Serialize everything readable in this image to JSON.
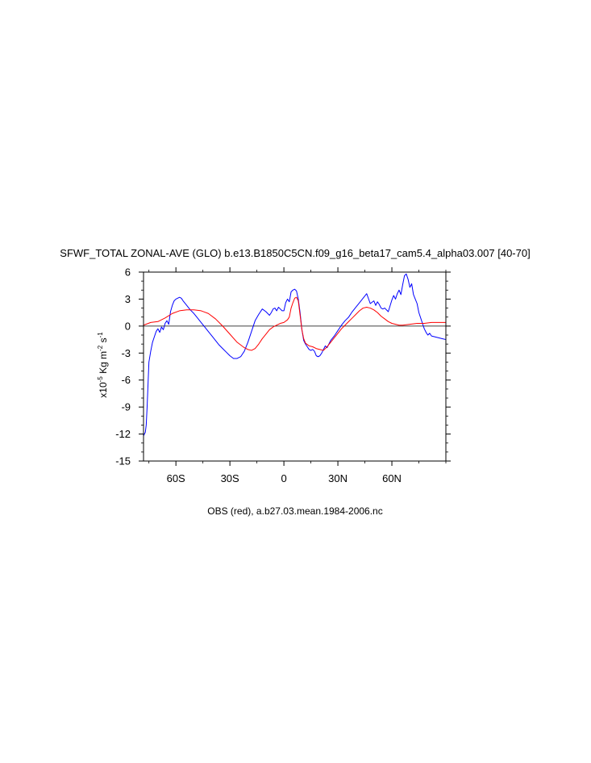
{
  "chart_data": {
    "type": "line",
    "title": "SFWF_TOTAL ZONAL-AVE (GLO) b.e13.B1850C5CN.f09_g16_beta17_cam5.4_alpha03.007 [40-70]",
    "footer": "OBS (red), a.b27.03.mean.1984-2006.nc",
    "ylabel": {
      "prefix": "x10",
      "exp1": "-5",
      "mid": " Kg m",
      "exp2": "-2",
      "mid2": " s",
      "exp3": "-1"
    },
    "xlim": [
      -78,
      90
    ],
    "ylim": [
      -15,
      6
    ],
    "x_ticks": [
      {
        "value": -60,
        "label": "60S"
      },
      {
        "value": -30,
        "label": "30S"
      },
      {
        "value": 0,
        "label": "0"
      },
      {
        "value": 30,
        "label": "30N"
      },
      {
        "value": 60,
        "label": "60N"
      }
    ],
    "y_ticks": [
      {
        "value": 6,
        "label": "6"
      },
      {
        "value": 3,
        "label": "3"
      },
      {
        "value": 0,
        "label": "0"
      },
      {
        "value": -3,
        "label": "-3"
      },
      {
        "value": -6,
        "label": "-6"
      },
      {
        "value": -9,
        "label": "-9"
      },
      {
        "value": -12,
        "label": "-12"
      },
      {
        "value": -15,
        "label": "-15"
      }
    ],
    "reference_line_y": 0,
    "series": [
      {
        "color": "#0000ff",
        "x": [
          -78,
          -77,
          -76.5,
          -76,
          -75.5,
          -75,
          -74,
          -73,
          -72,
          -71,
          -70,
          -69,
          -68,
          -67,
          -66,
          -65,
          -64,
          -63,
          -62,
          -61,
          -60,
          -59,
          -58,
          -57,
          -56,
          -54,
          -52,
          -50,
          -48,
          -46,
          -44,
          -42,
          -40,
          -38,
          -36,
          -34,
          -32,
          -30,
          -28,
          -26,
          -24,
          -22,
          -20,
          -18,
          -16,
          -14,
          -12,
          -10,
          -8,
          -7,
          -6,
          -5,
          -4,
          -3,
          -2,
          -1,
          0,
          1,
          2,
          3,
          4,
          5,
          6,
          7,
          8,
          9,
          10,
          11,
          12,
          13,
          14,
          15,
          16,
          17,
          18,
          19,
          20,
          21,
          22,
          23,
          24,
          25,
          26,
          28,
          30,
          32,
          34,
          36,
          38,
          40,
          42,
          44,
          46,
          48,
          50,
          51,
          52,
          53,
          54,
          55,
          56,
          58,
          60,
          61,
          62,
          63,
          64,
          65,
          66,
          67,
          68,
          69,
          70,
          71,
          72,
          73,
          74,
          75,
          76,
          77,
          78,
          79,
          80,
          81,
          82,
          84,
          86,
          88,
          90
        ],
        "y": [
          -12.2,
          -11.8,
          -11.0,
          -9.0,
          -6.5,
          -4.0,
          -2.8,
          -1.8,
          -1.2,
          -0.6,
          -0.3,
          -0.7,
          -0.1,
          -0.4,
          0.3,
          0.6,
          0.2,
          1.6,
          2.3,
          2.8,
          3.0,
          3.1,
          3.2,
          3.1,
          2.8,
          2.3,
          1.8,
          1.4,
          0.9,
          0.4,
          -0.1,
          -0.6,
          -1.1,
          -1.6,
          -2.1,
          -2.5,
          -2.9,
          -3.3,
          -3.6,
          -3.6,
          -3.4,
          -2.8,
          -1.8,
          -0.6,
          0.6,
          1.3,
          1.9,
          1.6,
          1.2,
          1.5,
          1.9,
          2.0,
          1.7,
          2.1,
          1.9,
          1.7,
          1.7,
          2.6,
          3.0,
          2.7,
          3.8,
          4.0,
          4.1,
          3.9,
          3.0,
          1.5,
          -0.4,
          -1.6,
          -2.0,
          -2.3,
          -2.6,
          -2.7,
          -2.6,
          -2.8,
          -3.3,
          -3.4,
          -3.3,
          -3.0,
          -2.6,
          -2.2,
          -2.4,
          -2.0,
          -1.6,
          -1.1,
          -0.5,
          0.1,
          0.6,
          1.0,
          1.6,
          2.1,
          2.6,
          3.1,
          3.6,
          2.5,
          2.8,
          2.3,
          2.7,
          2.4,
          2.0,
          1.9,
          2.0,
          1.6,
          2.9,
          3.4,
          3.0,
          3.6,
          4.0,
          3.5,
          4.6,
          5.6,
          5.8,
          5.2,
          4.3,
          4.7,
          3.5,
          3.0,
          2.5,
          1.5,
          0.9,
          0.3,
          -0.3,
          -0.7,
          -1.0,
          -0.8,
          -1.1,
          -1.2,
          -1.3,
          -1.4,
          -1.5
        ]
      },
      {
        "color": "#ff0000",
        "x": [
          -78,
          -74,
          -70,
          -66,
          -62,
          -58,
          -54,
          -50,
          -46,
          -42,
          -38,
          -34,
          -30,
          -26,
          -22,
          -20,
          -18,
          -16,
          -14,
          -12,
          -10,
          -8,
          -6,
          -4,
          -2,
          0,
          2,
          3,
          4,
          5,
          6,
          7,
          8,
          9,
          10,
          11,
          12,
          14,
          16,
          18,
          20,
          22,
          24,
          26,
          28,
          30,
          32,
          34,
          36,
          38,
          40,
          42,
          44,
          46,
          48,
          50,
          52,
          54,
          56,
          58,
          60,
          62,
          64,
          66,
          70,
          74,
          78,
          82,
          86,
          90
        ],
        "y": [
          0.1,
          0.4,
          0.5,
          0.9,
          1.4,
          1.7,
          1.8,
          1.8,
          1.7,
          1.4,
          0.8,
          0.0,
          -0.9,
          -1.8,
          -2.4,
          -2.6,
          -2.7,
          -2.5,
          -2.0,
          -1.4,
          -0.9,
          -0.4,
          -0.1,
          0.1,
          0.3,
          0.4,
          0.7,
          1.0,
          2.0,
          2.6,
          3.1,
          3.2,
          2.8,
          1.2,
          -0.4,
          -1.4,
          -1.9,
          -2.2,
          -2.3,
          -2.5,
          -2.6,
          -2.7,
          -2.3,
          -1.8,
          -1.3,
          -0.8,
          -0.3,
          0.1,
          0.5,
          0.9,
          1.3,
          1.7,
          2.0,
          2.1,
          2.0,
          1.8,
          1.5,
          1.1,
          0.8,
          0.5,
          0.3,
          0.2,
          0.1,
          0.1,
          0.2,
          0.3,
          0.3,
          0.4,
          0.4,
          0.4
        ]
      }
    ]
  }
}
